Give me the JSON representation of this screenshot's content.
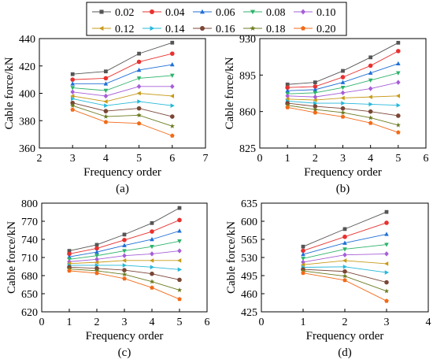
{
  "legend": {
    "entries": [
      {
        "label": "0.02",
        "color": "#555555",
        "marker": "square"
      },
      {
        "label": "0.04",
        "color": "#e8312f",
        "marker": "circle"
      },
      {
        "label": "0.06",
        "color": "#1f6fd6",
        "marker": "triangle-up"
      },
      {
        "label": "0.08",
        "color": "#2db36b",
        "marker": "triangle-down"
      },
      {
        "label": "0.10",
        "color": "#a65ed6",
        "marker": "diamond"
      },
      {
        "label": "0.12",
        "color": "#c79a1a",
        "marker": "triangle-left"
      },
      {
        "label": "0.14",
        "color": "#26b8d9",
        "marker": "triangle-right"
      },
      {
        "label": "0.16",
        "color": "#7a4636",
        "marker": "circle"
      },
      {
        "label": "0.18",
        "color": "#6b7a1e",
        "marker": "star"
      },
      {
        "label": "0.20",
        "color": "#f26a17",
        "marker": "pentagon"
      }
    ]
  },
  "chart_data": [
    {
      "type": "line",
      "panel_label": "(a)",
      "xlabel": "Frequency order",
      "ylabel": "Cable force/kN",
      "xlim": [
        2,
        7
      ],
      "ylim": [
        360,
        440
      ],
      "xticks": [
        2,
        3,
        4,
        5,
        6,
        7
      ],
      "yticks": [
        360,
        380,
        400,
        420,
        440
      ],
      "x": [
        3,
        4,
        5,
        6
      ],
      "series": [
        {
          "name": "0.02",
          "values": [
            414,
            416,
            429,
            437
          ]
        },
        {
          "name": "0.04",
          "values": [
            410,
            411,
            423,
            429
          ]
        },
        {
          "name": "0.06",
          "values": [
            407,
            407,
            417,
            421
          ]
        },
        {
          "name": "0.08",
          "values": [
            404,
            402,
            411,
            413
          ]
        },
        {
          "name": "0.10",
          "values": [
            401,
            398,
            405,
            405
          ]
        },
        {
          "name": "0.12",
          "values": [
            398,
            394,
            400,
            398
          ]
        },
        {
          "name": "0.14",
          "values": [
            396,
            391,
            394,
            391
          ]
        },
        {
          "name": "0.16",
          "values": [
            393,
            387,
            389,
            383
          ]
        },
        {
          "name": "0.18",
          "values": [
            391,
            383,
            384,
            376
          ]
        },
        {
          "name": "0.20",
          "values": [
            388,
            379,
            378,
            369
          ]
        }
      ]
    },
    {
      "type": "line",
      "panel_label": "(b)",
      "xlabel": "Frequency order",
      "ylabel": "Cable force/kN",
      "xlim": [
        0,
        6
      ],
      "ylim": [
        825,
        930
      ],
      "xticks": [
        0,
        1,
        2,
        3,
        4,
        5,
        6
      ],
      "yticks": [
        825,
        860,
        895,
        930
      ],
      "x": [
        1,
        2,
        3,
        4,
        5
      ],
      "series": [
        {
          "name": "0.02",
          "values": [
            886,
            888,
            899,
            912,
            926
          ]
        },
        {
          "name": "0.04",
          "values": [
            883,
            884,
            893,
            904,
            918
          ]
        },
        {
          "name": "0.06",
          "values": [
            880,
            881,
            888,
            897,
            906
          ]
        },
        {
          "name": "0.08",
          "values": [
            877,
            878,
            883,
            890,
            897
          ]
        },
        {
          "name": "0.10",
          "values": [
            875,
            874,
            878,
            882,
            888
          ]
        },
        {
          "name": "0.12",
          "values": [
            872,
            871,
            873,
            874,
            875
          ]
        },
        {
          "name": "0.14",
          "values": [
            870,
            868,
            868,
            867,
            866
          ]
        },
        {
          "name": "0.16",
          "values": [
            868,
            865,
            863,
            860,
            856
          ]
        },
        {
          "name": "0.18",
          "values": [
            866,
            862,
            859,
            854,
            847
          ]
        },
        {
          "name": "0.20",
          "values": [
            864,
            859,
            855,
            849,
            840
          ]
        }
      ]
    },
    {
      "type": "line",
      "panel_label": "(c)",
      "xlabel": "Frequency order",
      "ylabel": "Cable force/kN",
      "xlim": [
        0,
        6
      ],
      "ylim": [
        620,
        800
      ],
      "xticks": [
        0,
        1,
        2,
        3,
        4,
        5,
        6
      ],
      "yticks": [
        620,
        650,
        680,
        710,
        740,
        770,
        800
      ],
      "x": [
        1,
        2,
        3,
        4,
        5
      ],
      "series": [
        {
          "name": "0.02",
          "values": [
            721,
            731,
            748,
            767,
            792
          ]
        },
        {
          "name": "0.04",
          "values": [
            716,
            725,
            739,
            753,
            772
          ]
        },
        {
          "name": "0.06",
          "values": [
            711,
            719,
            730,
            740,
            754
          ]
        },
        {
          "name": "0.08",
          "values": [
            707,
            713,
            721,
            728,
            737
          ]
        },
        {
          "name": "0.10",
          "values": [
            703,
            707,
            713,
            716,
            721
          ]
        },
        {
          "name": "0.12",
          "values": [
            700,
            702,
            705,
            705,
            705
          ]
        },
        {
          "name": "0.14",
          "values": [
            697,
            697,
            697,
            694,
            690
          ]
        },
        {
          "name": "0.16",
          "values": [
            694,
            692,
            689,
            683,
            673
          ]
        },
        {
          "name": "0.18",
          "values": [
            691,
            688,
            682,
            670,
            656
          ]
        },
        {
          "name": "0.20",
          "values": [
            688,
            684,
            675,
            660,
            641
          ]
        }
      ]
    },
    {
      "type": "line",
      "panel_label": "(d)",
      "xlabel": "Frequency order",
      "ylabel": "Cable force/kN",
      "xlim": [
        0,
        4
      ],
      "ylim": [
        425,
        635
      ],
      "xticks": [
        0,
        1,
        2,
        3,
        4
      ],
      "yticks": [
        425,
        460,
        495,
        530,
        565,
        600,
        635
      ],
      "x": [
        1,
        2,
        3
      ],
      "series": [
        {
          "name": "0.02",
          "values": [
            551,
            585,
            618
          ]
        },
        {
          "name": "0.04",
          "values": [
            543,
            570,
            597
          ]
        },
        {
          "name": "0.06",
          "values": [
            536,
            558,
            575
          ]
        },
        {
          "name": "0.08",
          "values": [
            528,
            546,
            555
          ]
        },
        {
          "name": "0.10",
          "values": [
            521,
            535,
            537
          ]
        },
        {
          "name": "0.12",
          "values": [
            516,
            524,
            518
          ]
        },
        {
          "name": "0.14",
          "values": [
            511,
            512,
            501
          ]
        },
        {
          "name": "0.16",
          "values": [
            507,
            503,
            482
          ]
        },
        {
          "name": "0.18",
          "values": [
            504,
            494,
            465
          ]
        },
        {
          "name": "0.20",
          "values": [
            500,
            486,
            446
          ]
        }
      ]
    }
  ]
}
